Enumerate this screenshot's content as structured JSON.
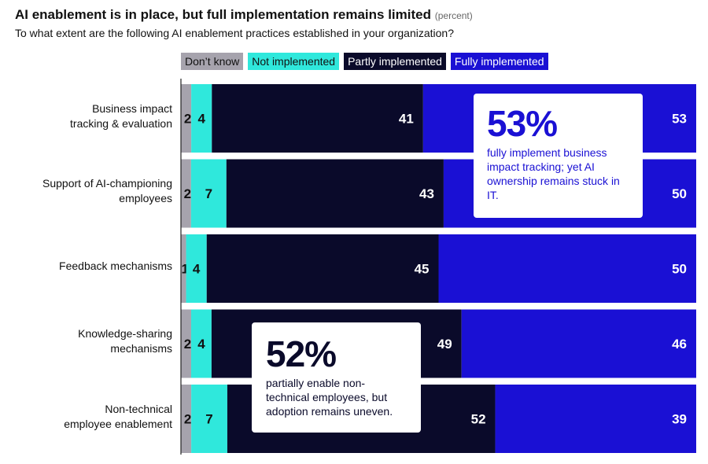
{
  "chart_data": {
    "type": "bar",
    "orientation": "horizontal",
    "stacked": true,
    "title": "AI enablement is in place, but full implementation remains limited",
    "title_unit": "(percent)",
    "subtitle": "To what extent are the following AI enablement practices established in your organization?",
    "categories": [
      [
        "Business impact",
        "tracking & evaluation"
      ],
      [
        "Support of AI-championing",
        "employees"
      ],
      [
        "Feedback mechanisms"
      ],
      [
        "Knowledge-sharing",
        "mechanisms"
      ],
      [
        "Non-technical",
        "employee enablement"
      ]
    ],
    "series": [
      {
        "name": "Don’t know",
        "color": "#a6a3ad",
        "values": [
          2,
          2,
          1,
          2,
          2
        ]
      },
      {
        "name": "Not implemented",
        "color": "#2fe8dc",
        "values": [
          4,
          7,
          4,
          4,
          7
        ]
      },
      {
        "name": "Partly implemented",
        "color": "#0a0a2a",
        "values": [
          41,
          43,
          45,
          49,
          52
        ]
      },
      {
        "name": "Fully implemented",
        "color": "#1a10d4",
        "values": [
          53,
          50,
          50,
          46,
          39
        ]
      }
    ],
    "legend_position": "top",
    "grid": false
  },
  "callouts": [
    {
      "big": "53%",
      "text": "fully implement business impact tracking; yet AI ownership remains stuck in IT.",
      "color": "#1a10d4"
    },
    {
      "big": "52%",
      "text": "partially enable non-technical employees, but adoption remains uneven.",
      "color": "#0a0a2a"
    }
  ]
}
